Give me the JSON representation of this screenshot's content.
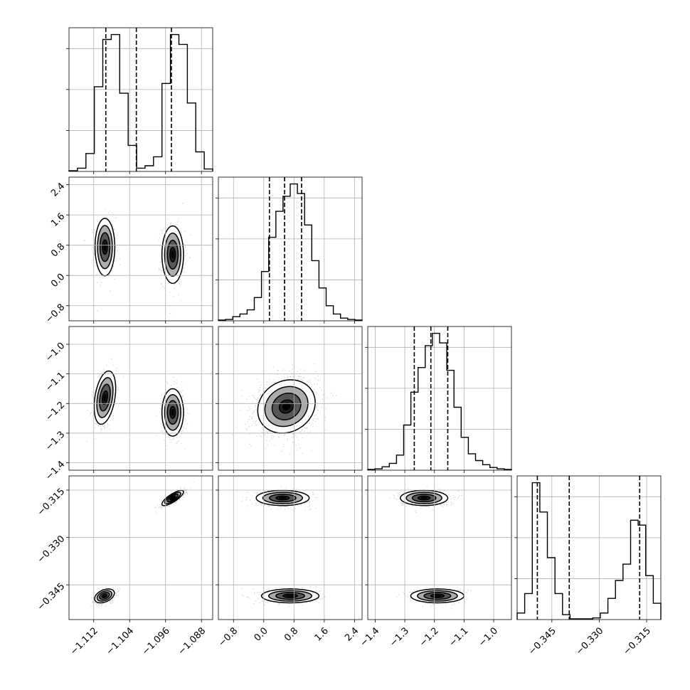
{
  "chart_data": {
    "type": "corner",
    "title": "",
    "parameter_labels": [
      "",
      "",
      "",
      ""
    ],
    "grid": true,
    "colors": {
      "line": "#000000",
      "grid": "#b0b0b0",
      "density": "#000000"
    },
    "parameters": [
      {
        "range": [
          -1.1175,
          -1.0855
        ],
        "ticks": [
          -1.112,
          -1.104,
          -1.096,
          -1.088
        ],
        "tick_labels": [
          "−1.112",
          "−1.104",
          "−1.096",
          "−1.088"
        ],
        "quantiles": [
          -1.1093,
          -1.1025,
          -1.0947
        ],
        "histogram": [
          0.5,
          2.0,
          11.0,
          52.0,
          81.0,
          84.0,
          48.0,
          16.0,
          2.0,
          3.5,
          9.0,
          54.0,
          84.0,
          78.0,
          42.0,
          12.0,
          1.5
        ]
      },
      {
        "range": [
          -1.2,
          2.6
        ],
        "ticks": [
          -0.8,
          0.0,
          0.8,
          1.6,
          2.4
        ],
        "tick_labels": [
          "−0.8",
          "0.0",
          "0.8",
          "1.6",
          "2.4"
        ],
        "quantiles": [
          0.15,
          0.55,
          1.0
        ],
        "histogram": [
          0.5,
          1.0,
          3.0,
          5.0,
          8.0,
          17.0,
          36.0,
          61.0,
          80.0,
          91.0,
          100.0,
          93.0,
          70.0,
          44.0,
          24.0,
          11.0,
          5.0,
          2.0,
          1.0,
          0.5
        ]
      },
      {
        "range": [
          -1.425,
          -0.94
        ],
        "ticks": [
          -1.4,
          -1.3,
          -1.2,
          -1.1,
          -1.0
        ],
        "tick_labels": [
          "−1.4",
          "−1.3",
          "−1.2",
          "−1.1",
          "−1.0"
        ],
        "quantiles": [
          -1.268,
          -1.212,
          -1.155
        ],
        "histogram": [
          0.5,
          1.0,
          2.5,
          5.0,
          11.0,
          33.0,
          57.0,
          75.0,
          91.0,
          100.0,
          93.0,
          73.0,
          46.0,
          24.0,
          12.0,
          7.0,
          4.0,
          2.0,
          1.0,
          0.5
        ]
      },
      {
        "range": [
          -0.356,
          -0.3105
        ],
        "ticks": [
          -0.345,
          -0.33,
          -0.315
        ],
        "tick_labels": [
          "−0.345",
          "−0.330",
          "−0.315"
        ],
        "quantiles": [
          -0.3496,
          -0.3395,
          -0.3172
        ],
        "histogram": [
          4.0,
          16.0,
          84.0,
          66.0,
          38.0,
          16.0,
          3.0,
          0.5,
          0.5,
          0.5,
          1.0,
          4.0,
          13.0,
          24.0,
          34.0,
          61.0,
          58.0,
          27.0,
          10.0
        ]
      }
    ],
    "pairs": [
      {
        "x": 0,
        "y": 1,
        "modes": [
          {
            "mx": -1.1095,
            "my": 0.75,
            "sx": 0.0011,
            "sy": 0.38,
            "rho": 0.0,
            "w": 0.5
          },
          {
            "mx": -1.0944,
            "my": 0.55,
            "sx": 0.0012,
            "sy": 0.38,
            "rho": 0.0,
            "w": 0.5
          }
        ]
      },
      {
        "x": 0,
        "y": 2,
        "modes": [
          {
            "mx": -1.1095,
            "my": -1.18,
            "sx": 0.0012,
            "sy": 0.045,
            "rho": 0.35,
            "w": 0.5
          },
          {
            "mx": -1.0944,
            "my": -1.23,
            "sx": 0.0012,
            "sy": 0.04,
            "rho": 0.0,
            "w": 0.5
          }
        ]
      },
      {
        "x": 0,
        "y": 3,
        "modes": [
          {
            "mx": -1.1096,
            "my": -0.3485,
            "sx": 0.0011,
            "sy": 0.0011,
            "rho": 0.4,
            "w": 0.5
          },
          {
            "mx": -1.0944,
            "my": -0.3175,
            "sx": 0.0012,
            "sy": 0.0012,
            "rho": 0.8,
            "w": 0.5
          }
        ]
      },
      {
        "x": 1,
        "y": 2,
        "modes": [
          {
            "mx": 0.6,
            "my": -1.21,
            "sx": 0.38,
            "sy": 0.045,
            "rho": 0.15,
            "w": 1.0
          }
        ]
      },
      {
        "x": 1,
        "y": 3,
        "modes": [
          {
            "mx": 0.5,
            "my": -0.3175,
            "sx": 0.35,
            "sy": 0.0012,
            "rho": 0.0,
            "w": 0.5
          },
          {
            "mx": 0.7,
            "my": -0.3485,
            "sx": 0.38,
            "sy": 0.0011,
            "rho": 0.0,
            "w": 0.5
          }
        ]
      },
      {
        "x": 2,
        "y": 3,
        "modes": [
          {
            "mx": -1.235,
            "my": -0.3175,
            "sx": 0.04,
            "sy": 0.0012,
            "rho": 0.0,
            "w": 0.5
          },
          {
            "mx": -1.19,
            "my": -0.3485,
            "sx": 0.045,
            "sy": 0.0011,
            "rho": 0.0,
            "w": 0.5
          }
        ]
      }
    ]
  }
}
